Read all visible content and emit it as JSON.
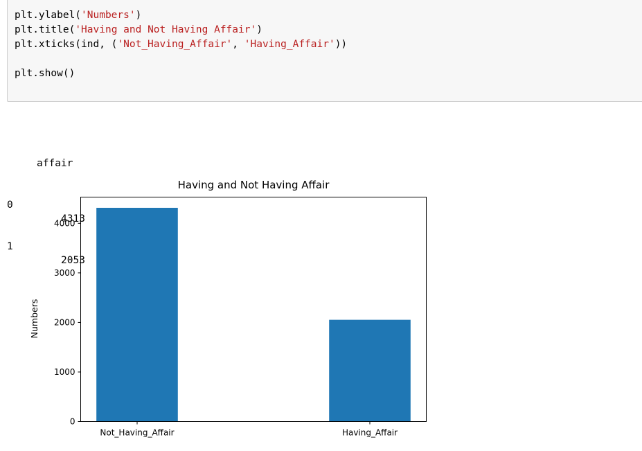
{
  "code_cell": {
    "lines": [
      {
        "fn": "plt.ylabel(",
        "str": "'Numbers'",
        "tail": ")"
      },
      {
        "fn": "plt.title(",
        "str": "'Having and Not Having Affair'",
        "tail": ")"
      },
      {
        "fn": "plt.xticks(ind, (",
        "str": "'Not_Having_Affair'",
        "mid": ", ",
        "str2": "'Having_Affair'",
        "tail": "))"
      },
      {
        "fn": "",
        "str": "",
        "tail": ""
      },
      {
        "fn": "plt.show()",
        "str": "",
        "tail": ""
      }
    ]
  },
  "output": {
    "table": {
      "header": "affair",
      "rows": [
        {
          "index": "0",
          "value": "4313"
        },
        {
          "index": "1",
          "value": "2053"
        }
      ]
    }
  },
  "chart_data": {
    "type": "bar",
    "title": "Having and Not Having Affair",
    "ylabel": "Numbers",
    "xlabel": "",
    "categories": [
      "Not_Having_Affair",
      "Having_Affair"
    ],
    "values": [
      4313,
      2053
    ],
    "ylim": [
      0,
      4529
    ],
    "yticks": [
      0,
      1000,
      2000,
      3000,
      4000
    ],
    "ytick_labels": [
      "0",
      "1000",
      "2000",
      "3000",
      "4000"
    ],
    "bar_color": "#1f77b4",
    "grid": false
  }
}
